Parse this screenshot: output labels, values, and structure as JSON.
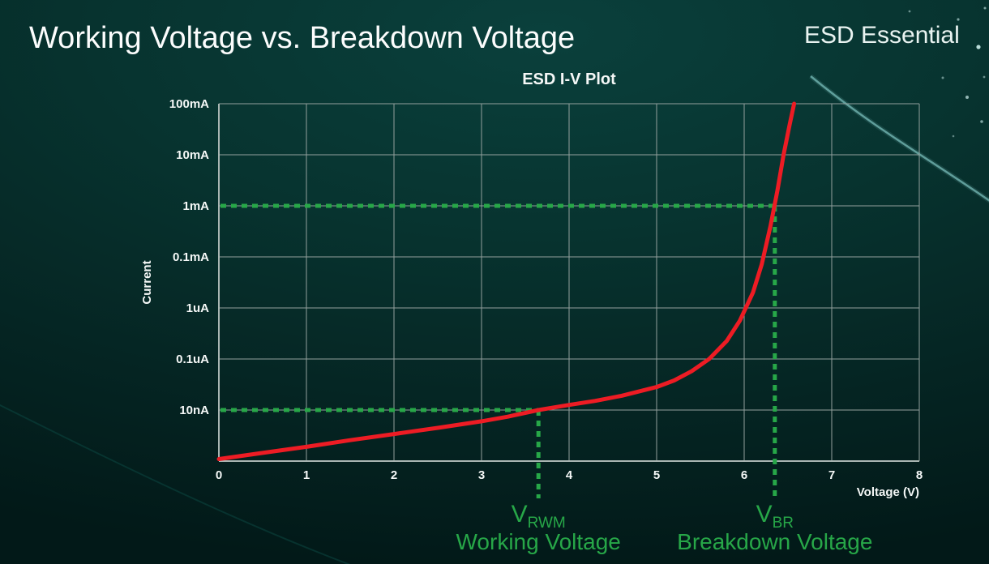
{
  "page": {
    "title": "Working Voltage vs. Breakdown Voltage",
    "brand": "ESD Essential"
  },
  "colors": {
    "background_teal": "#07332f",
    "grid": "#93a09d",
    "curve_red": "#ed1c24",
    "annotation_green": "#27a748",
    "text_white": "#f5f8f7",
    "accent_cyan": "#8fd9d6"
  },
  "chart_data": {
    "type": "line",
    "title": "ESD I-V Plot",
    "xlabel": "Voltage (V)",
    "ylabel": "Current",
    "xlim": [
      0,
      8
    ],
    "x_ticks": [
      0,
      1,
      2,
      3,
      4,
      5,
      6,
      7,
      8
    ],
    "y_ticks": [
      "100mA",
      "10mA",
      "1mA",
      "0.1mA",
      "1uA",
      "0.1uA",
      "10nA"
    ],
    "y_axis": {
      "scale": "log",
      "decades_per_gridline": 1,
      "top_value": "100mA",
      "bottom_row_unlabeled": true
    },
    "grid": true,
    "legend": "none",
    "series": [
      {
        "name": "ESD I-V curve",
        "color": "#ed1c24",
        "note": "y values are decades above the bottom axis line; 10nA=1, 1mA=5, 100mA=7",
        "points": [
          [
            0,
            0.04
          ],
          [
            0.5,
            0.16
          ],
          [
            1,
            0.28
          ],
          [
            1.5,
            0.41
          ],
          [
            2,
            0.53
          ],
          [
            2.5,
            0.65
          ],
          [
            3,
            0.78
          ],
          [
            3.3,
            0.87
          ],
          [
            3.65,
            1.0
          ],
          [
            4,
            1.1
          ],
          [
            4.3,
            1.18
          ],
          [
            4.6,
            1.28
          ],
          [
            5,
            1.45
          ],
          [
            5.2,
            1.58
          ],
          [
            5.4,
            1.76
          ],
          [
            5.6,
            2.0
          ],
          [
            5.8,
            2.35
          ],
          [
            5.95,
            2.75
          ],
          [
            6.1,
            3.3
          ],
          [
            6.2,
            3.85
          ],
          [
            6.3,
            4.6
          ],
          [
            6.38,
            5.3
          ],
          [
            6.45,
            6.0
          ],
          [
            6.52,
            6.6
          ],
          [
            6.57,
            7.0
          ]
        ]
      }
    ],
    "annotations": [
      {
        "id": "vrwm",
        "x": 3.65,
        "y_level": 1,
        "y_tick": "10nA",
        "label_main": "V",
        "label_sub": "RWM",
        "caption": "Working Voltage",
        "color": "#27a748"
      },
      {
        "id": "vbr",
        "x": 6.35,
        "y_level": 5,
        "y_tick": "1mA",
        "label_main": "V",
        "label_sub": "BR",
        "caption": "Breakdown Voltage",
        "color": "#27a748"
      }
    ]
  }
}
